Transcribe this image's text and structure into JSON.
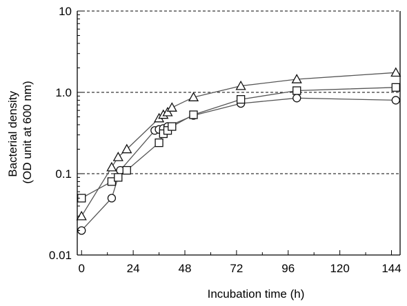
{
  "chart_data": {
    "type": "line",
    "title": "",
    "xlabel": "Incubation time (h)",
    "ylabel": [
      "Bacterial density",
      "(OD unit at 600 nm)"
    ],
    "xlim": [
      -2,
      148
    ],
    "ylim": [
      0.01,
      10
    ],
    "yscale": "log",
    "x_ticks": [
      0,
      24,
      48,
      72,
      96,
      120,
      144
    ],
    "x_tick_labels": [
      "0",
      "24",
      "48",
      "72",
      "96",
      "120",
      "144"
    ],
    "y_ticks": [
      0.01,
      0.1,
      1,
      10
    ],
    "y_tick_labels": [
      "0.01",
      "0.1",
      "1.0",
      "10"
    ],
    "grid": {
      "horizontal_dashed_at": [
        0.1,
        1,
        10
      ]
    },
    "legend": "none",
    "series": [
      {
        "marker": "circle",
        "x": [
          0,
          14,
          18,
          34,
          36,
          38,
          40,
          52,
          74,
          100,
          146
        ],
        "y": [
          0.02,
          0.05,
          0.11,
          0.34,
          0.35,
          0.36,
          0.38,
          0.52,
          0.73,
          0.85,
          0.8
        ]
      },
      {
        "marker": "square",
        "x": [
          0,
          14,
          17,
          21,
          36,
          38,
          40,
          42,
          52,
          74,
          100,
          146
        ],
        "y": [
          0.05,
          0.08,
          0.09,
          0.11,
          0.24,
          0.31,
          0.34,
          0.38,
          0.53,
          0.82,
          1.05,
          1.15
        ]
      },
      {
        "marker": "triangle",
        "x": [
          0,
          14,
          17,
          21,
          36,
          38,
          40,
          42,
          52,
          74,
          100,
          146
        ],
        "y": [
          0.03,
          0.12,
          0.16,
          0.2,
          0.48,
          0.53,
          0.57,
          0.65,
          0.87,
          1.2,
          1.45,
          1.75
        ]
      }
    ],
    "colors": {
      "line": "#555555",
      "marker_stroke": "#111111",
      "marker_fill": "#ffffff",
      "axis": "#000000",
      "grid": "#000000"
    }
  }
}
